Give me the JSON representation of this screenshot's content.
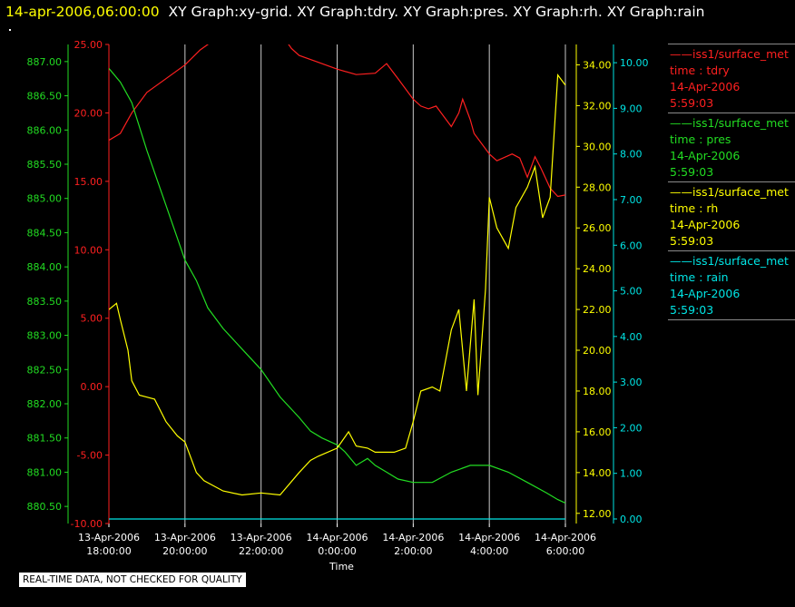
{
  "header": {
    "timestamp": "14-apr-2006,06:00:00",
    "graphs": "XY Graph:xy-grid.  XY Graph:tdry.  XY Graph:pres.  XY Graph:rh.  XY Graph:rain"
  },
  "colors": {
    "tdry": "#ff2020",
    "pres": "#22dd22",
    "rh": "#ffff00",
    "rain": "#00e5e5",
    "grid": "#c8c8c8",
    "background": "#000000"
  },
  "legend": [
    {
      "series": "——iss1/surface_met",
      "var": "time : tdry",
      "date": "14-Apr-2006",
      "time": "5:59:03",
      "color": "#ff2020"
    },
    {
      "series": "——iss1/surface_met",
      "var": "time : pres",
      "date": "14-Apr-2006",
      "time": "5:59:03",
      "color": "#22dd22"
    },
    {
      "series": "——iss1/surface_met",
      "var": "time : rh",
      "date": "14-Apr-2006",
      "time": "5:59:03",
      "color": "#ffff00"
    },
    {
      "series": "——iss1/surface_met",
      "var": "time : rain",
      "date": "14-Apr-2006",
      "time": "5:59:03",
      "color": "#00e5e5"
    }
  ],
  "note": "REAL-TIME DATA, NOT CHECKED FOR QUALITY",
  "chart_data": {
    "type": "line",
    "title": "",
    "xlabel": "Time",
    "x_ticks": [
      {
        "date": "13-Apr-2006",
        "time": "18:00:00",
        "hours": 0
      },
      {
        "date": "13-Apr-2006",
        "time": "20:00:00",
        "hours": 2
      },
      {
        "date": "13-Apr-2006",
        "time": "22:00:00",
        "hours": 4
      },
      {
        "date": "14-Apr-2006",
        "time": "0:00:00",
        "hours": 6
      },
      {
        "date": "14-Apr-2006",
        "time": "2:00:00",
        "hours": 8
      },
      {
        "date": "14-Apr-2006",
        "time": "4:00:00",
        "hours": 10
      },
      {
        "date": "14-Apr-2006",
        "time": "6:00:00",
        "hours": 12
      }
    ],
    "xlim_hours": [
      0,
      12
    ],
    "grid": "vertical lines at each time tick",
    "axes": {
      "pres": {
        "ylim": [
          880.25,
          887.25
        ],
        "ticks": [
          "880.50",
          "881.00",
          "881.50",
          "882.00",
          "882.50",
          "883.00",
          "883.50",
          "884.00",
          "884.50",
          "885.00",
          "885.50",
          "886.00",
          "886.50",
          "887.00"
        ]
      },
      "tdry": {
        "ylim": [
          -10,
          25
        ],
        "ticks": [
          "-10.00",
          "-5.00",
          "0.00",
          "5.00",
          "10.00",
          "15.00",
          "20.00",
          "25.00"
        ]
      },
      "rh": {
        "ylim": [
          11.5,
          35
        ],
        "ticks": [
          "12.00",
          "14.00",
          "16.00",
          "18.00",
          "20.00",
          "22.00",
          "24.00",
          "26.00",
          "28.00",
          "30.00",
          "32.00",
          "34.00"
        ]
      },
      "rain": {
        "ylim": [
          -0.1,
          10.4
        ],
        "ticks": [
          "0.00",
          "1.00",
          "2.00",
          "3.00",
          "4.00",
          "5.00",
          "6.00",
          "7.00",
          "8.00",
          "9.00",
          "10.00"
        ]
      }
    },
    "series": [
      {
        "name": "time : tdry",
        "axis": "tdry",
        "x": [
          0,
          0.3,
          0.6,
          1,
          1.5,
          2,
          2.4,
          2.7,
          2.75,
          4.6,
          4.8,
          5,
          5.5,
          6,
          6.5,
          7,
          7.3,
          7.6,
          8,
          8.2,
          8.4,
          8.6,
          9,
          9.2,
          9.3,
          9.5,
          9.6,
          10,
          10.2,
          10.6,
          10.8,
          11,
          11.2,
          11.35,
          11.6,
          11.8,
          12
        ],
        "y": [
          18,
          18.5,
          20,
          21.5,
          22.5,
          23.5,
          24.6,
          25.2,
          25.5,
          25.5,
          24.7,
          24.2,
          23.7,
          23.2,
          22.8,
          22.9,
          23.6,
          22.5,
          21,
          20.5,
          20.3,
          20.5,
          19,
          20,
          21,
          19.5,
          18.5,
          17,
          16.5,
          17,
          16.7,
          15.3,
          16.8,
          16,
          14.5,
          13.9,
          14
        ]
      },
      {
        "name": "time : pres",
        "axis": "pres",
        "x": [
          0,
          0.3,
          0.6,
          1,
          1.5,
          2,
          2.3,
          2.6,
          3,
          3.5,
          4,
          4.5,
          5,
          5.3,
          5.6,
          6,
          6.2,
          6.5,
          6.8,
          7,
          7.3,
          7.6,
          8,
          8.5,
          9,
          9.5,
          10,
          10.5,
          11,
          11.5,
          11.8,
          12
        ],
        "y": [
          886.9,
          886.7,
          886.4,
          885.7,
          884.9,
          884.1,
          883.8,
          883.4,
          883.1,
          882.8,
          882.5,
          882.1,
          881.8,
          881.6,
          881.5,
          881.4,
          881.3,
          881.1,
          881.2,
          881.1,
          881.0,
          880.9,
          880.85,
          880.85,
          881.0,
          881.1,
          881.1,
          881.0,
          880.85,
          880.7,
          880.6,
          880.55
        ]
      },
      {
        "name": "time : rh",
        "axis": "rh",
        "x": [
          0,
          0.2,
          0.3,
          0.5,
          0.6,
          0.8,
          1,
          1.2,
          1.5,
          1.8,
          2,
          2.3,
          2.5,
          3,
          3.5,
          4,
          4.5,
          5,
          5.3,
          5.5,
          6,
          6.3,
          6.5,
          6.8,
          7,
          7.5,
          7.8,
          8,
          8.2,
          8.5,
          8.7,
          9,
          9.2,
          9.4,
          9.6,
          9.7,
          9.9,
          10,
          10.2,
          10.5,
          10.7,
          11,
          11.2,
          11.4,
          11.6,
          11.8,
          12
        ],
        "y": [
          22,
          22.3,
          21.5,
          20,
          18.5,
          17.8,
          17.7,
          17.6,
          16.5,
          15.8,
          15.5,
          14,
          13.6,
          13.1,
          12.9,
          13,
          12.9,
          14,
          14.6,
          14.8,
          15.2,
          16.0,
          15.3,
          15.2,
          15.0,
          15.0,
          15.2,
          16.5,
          18.0,
          18.2,
          18.0,
          21,
          22,
          18,
          22.5,
          17.8,
          23,
          27.5,
          26,
          25,
          27,
          28,
          29,
          26.5,
          27.5,
          33.5,
          33
        ]
      },
      {
        "name": "time : rain",
        "axis": "rain",
        "x": [
          0,
          12
        ],
        "y": [
          0,
          0
        ]
      }
    ]
  }
}
